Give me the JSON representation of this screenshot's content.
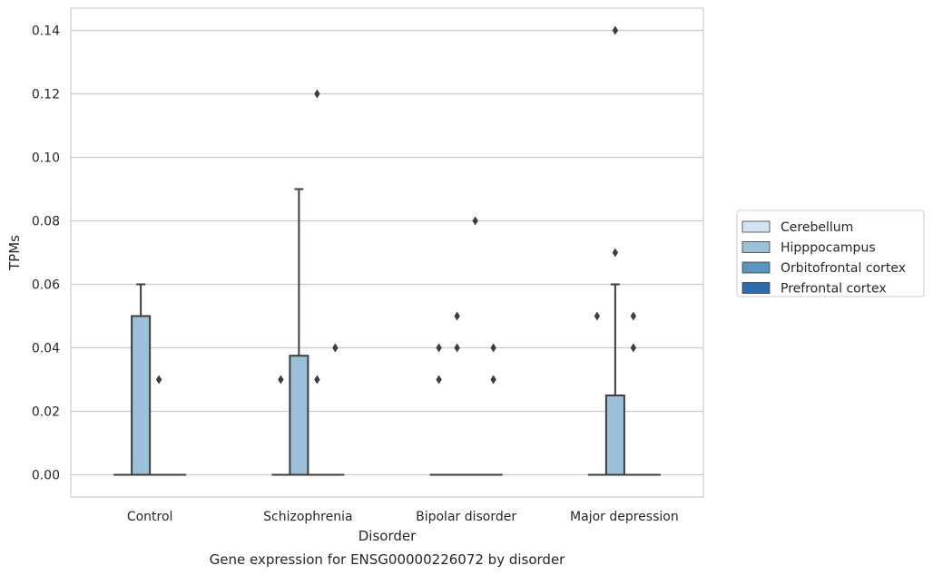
{
  "chart_data": {
    "type": "box",
    "title": "",
    "caption": "Gene expression for ENSG00000226072 by disorder",
    "xlabel": "Disorder",
    "ylabel": "TPMs",
    "ylim": [
      -0.007,
      0.147
    ],
    "yticks": [
      "0.00",
      "0.02",
      "0.04",
      "0.06",
      "0.08",
      "0.10",
      "0.12",
      "0.14"
    ],
    "ytick_values": [
      0,
      0.02,
      0.04,
      0.06,
      0.08,
      0.1,
      0.12,
      0.14
    ],
    "grid": true,
    "legend_position": "right",
    "categories": [
      "Control",
      "Schizophrenia",
      "Bipolar disorder",
      "Major depression"
    ],
    "series": [
      {
        "name": "Cerebellum",
        "color": "#d3e3f0",
        "boxes": [
          {
            "q1": 0,
            "median": 0,
            "q3": 0,
            "whisker_low": 0,
            "whisker_high": 0,
            "outliers": []
          },
          {
            "q1": 0,
            "median": 0,
            "q3": 0,
            "whisker_low": 0,
            "whisker_high": 0,
            "outliers": [
              0.03
            ]
          },
          {
            "q1": 0,
            "median": 0,
            "q3": 0,
            "whisker_low": 0,
            "whisker_high": 0,
            "outliers": [
              0.03,
              0.04
            ]
          },
          {
            "q1": 0,
            "median": 0,
            "q3": 0,
            "whisker_low": 0,
            "whisker_high": 0,
            "outliers": [
              0.05
            ]
          }
        ]
      },
      {
        "name": "Hipppocampus",
        "color": "#9bc0d9",
        "boxes": [
          {
            "q1": 0,
            "median": 0,
            "q3": 0.05,
            "whisker_low": 0,
            "whisker_high": 0.06,
            "outliers": []
          },
          {
            "q1": 0,
            "median": 0,
            "q3": 0.0375,
            "whisker_low": 0,
            "whisker_high": 0.09,
            "outliers": []
          },
          {
            "q1": 0,
            "median": 0,
            "q3": 0,
            "whisker_low": 0,
            "whisker_high": 0,
            "outliers": [
              0.04,
              0.05
            ]
          },
          {
            "q1": 0,
            "median": 0,
            "q3": 0.025,
            "whisker_low": 0,
            "whisker_high": 0.06,
            "outliers": [
              0.07,
              0.14
            ]
          }
        ]
      },
      {
        "name": "Orbitofrontal cortex",
        "color": "#5a95c0",
        "boxes": [
          {
            "q1": 0,
            "median": 0,
            "q3": 0,
            "whisker_low": 0,
            "whisker_high": 0,
            "outliers": [
              0.03
            ]
          },
          {
            "q1": 0,
            "median": 0,
            "q3": 0,
            "whisker_low": 0,
            "whisker_high": 0,
            "outliers": [
              0.03,
              0.12
            ]
          },
          {
            "q1": 0,
            "median": 0,
            "q3": 0,
            "whisker_low": 0,
            "whisker_high": 0,
            "outliers": [
              0.08
            ]
          },
          {
            "q1": 0,
            "median": 0,
            "q3": 0,
            "whisker_low": 0,
            "whisker_high": 0,
            "outliers": [
              0.04,
              0.05
            ]
          }
        ]
      },
      {
        "name": "Prefrontal cortex",
        "color": "#2d6ca6",
        "boxes": [
          {
            "q1": 0,
            "median": 0,
            "q3": 0,
            "whisker_low": 0,
            "whisker_high": 0,
            "outliers": []
          },
          {
            "q1": 0,
            "median": 0,
            "q3": 0,
            "whisker_low": 0,
            "whisker_high": 0,
            "outliers": [
              0.04
            ]
          },
          {
            "q1": 0,
            "median": 0,
            "q3": 0,
            "whisker_low": 0,
            "whisker_high": 0,
            "outliers": [
              0.03,
              0.04
            ]
          },
          {
            "q1": 0,
            "median": 0,
            "q3": 0,
            "whisker_low": 0,
            "whisker_high": 0,
            "outliers": []
          }
        ]
      }
    ]
  }
}
